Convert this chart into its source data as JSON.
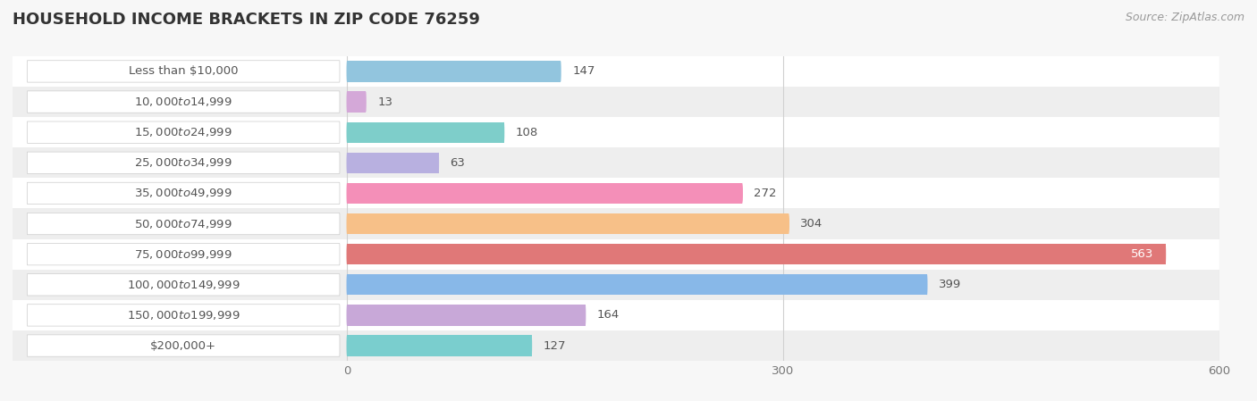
{
  "title": "Household Income Brackets in Zip Code 76259",
  "source": "Source: ZipAtlas.com",
  "categories": [
    "Less than $10,000",
    "$10,000 to $14,999",
    "$15,000 to $24,999",
    "$25,000 to $34,999",
    "$35,000 to $49,999",
    "$50,000 to $74,999",
    "$75,000 to $99,999",
    "$100,000 to $149,999",
    "$150,000 to $199,999",
    "$200,000+"
  ],
  "values": [
    147,
    13,
    108,
    63,
    272,
    304,
    563,
    399,
    164,
    127
  ],
  "colors": [
    "#92c5de",
    "#d4a8d8",
    "#7ececa",
    "#b8b0e0",
    "#f48fb8",
    "#f7c088",
    "#e07878",
    "#88b8e8",
    "#c8a8d8",
    "#7acece"
  ],
  "xlim_left": -230,
  "xlim_right": 600,
  "xticks": [
    0,
    300,
    600
  ],
  "title_fontsize": 13,
  "label_fontsize": 9.5,
  "value_fontsize": 9.5,
  "bar_height": 0.68,
  "background_color": "#f7f7f7",
  "row_bg_light": "#ffffff",
  "row_bg_dark": "#eeeeee",
  "label_bg_color": "#ffffff",
  "grid_color": "#d0d0d0",
  "text_color": "#555555",
  "title_color": "#333333"
}
